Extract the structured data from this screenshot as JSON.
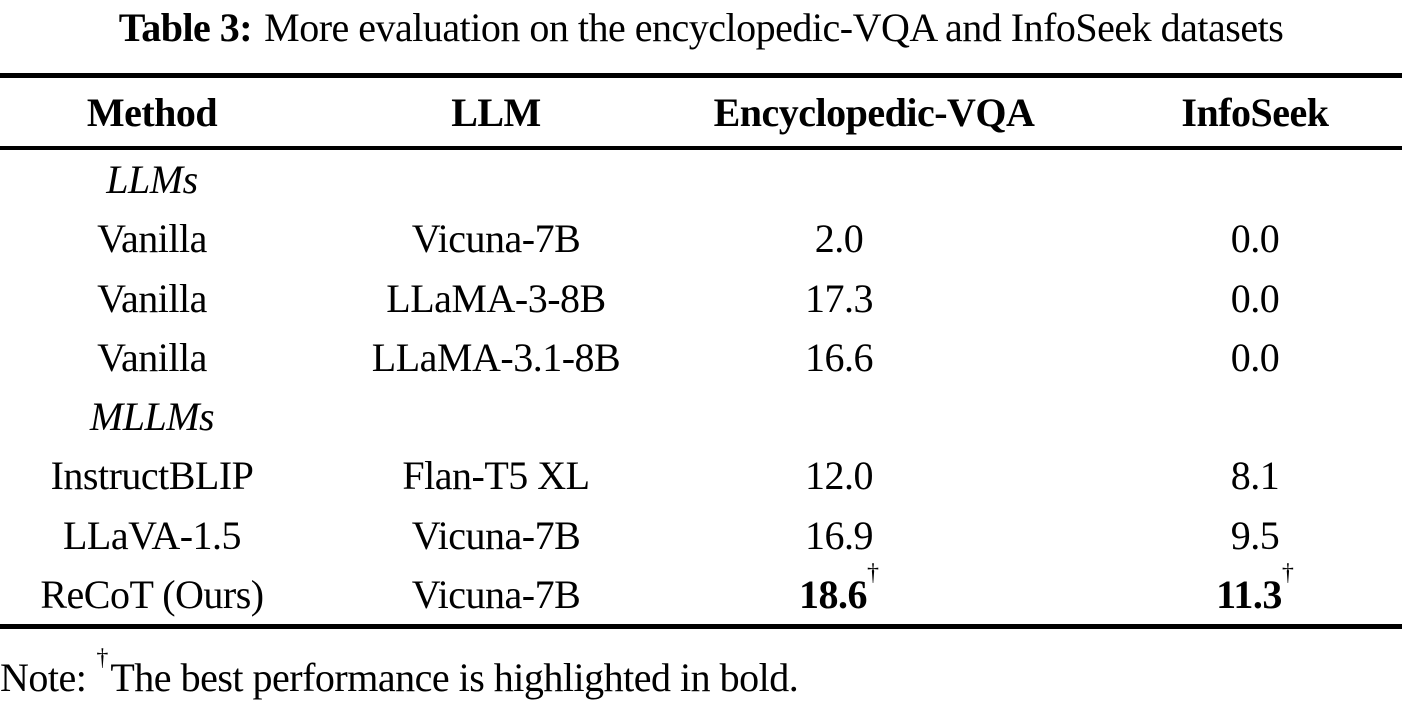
{
  "caption": {
    "label": "Table 3:",
    "text": "More evaluation on the encyclopedic-VQA and InfoSeek datasets"
  },
  "table": {
    "headers": [
      "Method",
      "LLM",
      "Encyclopedic-VQA",
      "InfoSeek"
    ],
    "rows": [
      {
        "method": "LLMs"
      },
      {
        "method": "Vanilla",
        "llm": "Vicuna-7B",
        "vqa": "2.0",
        "infoseek": "0.0"
      },
      {
        "method": "Vanilla",
        "llm": "LLaMA-3-8B",
        "vqa": "17.3",
        "infoseek": "0.0"
      },
      {
        "method": "Vanilla",
        "llm": "LLaMA-3.1-8B",
        "vqa": "16.6",
        "infoseek": "0.0"
      },
      {
        "method": "MLLMs"
      },
      {
        "method": "InstructBLIP",
        "llm": "Flan-T5 XL",
        "vqa": "12.0",
        "infoseek": "8.1"
      },
      {
        "method": "LLaVA-1.5",
        "llm": "Vicuna-7B",
        "vqa": "16.9",
        "infoseek": "9.5"
      },
      {
        "method": "ReCoT (Ours)",
        "llm": "Vicuna-7B",
        "vqa": "18.6",
        "vqa_sup": "†",
        "infoseek": "11.3",
        "infoseek_sup": "†"
      }
    ]
  },
  "note": {
    "prefix": "Note:",
    "sup": "†",
    "text": "The best performance is highlighted in bold."
  }
}
